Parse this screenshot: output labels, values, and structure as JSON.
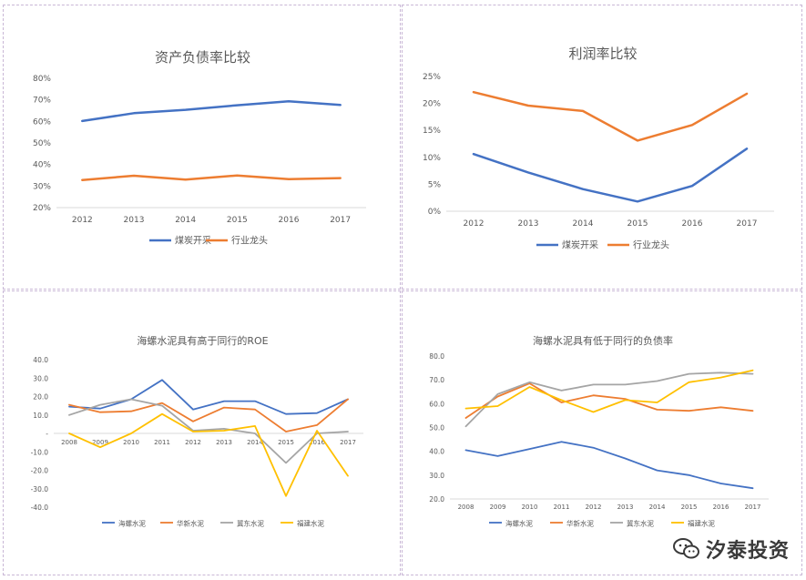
{
  "charts": [
    {
      "type": "line",
      "title": "资产负债率比较",
      "categories": [
        "2012",
        "2013",
        "2014",
        "2015",
        "2016",
        "2017"
      ],
      "y_ticks": [
        "20%",
        "30%",
        "40%",
        "50%",
        "60%",
        "70%",
        "80%"
      ],
      "ylim": [
        20,
        80
      ],
      "series": [
        {
          "name": "煤炭开采",
          "color": "#4472c4",
          "values": [
            60.2,
            63.8,
            65.4,
            67.5,
            69.3,
            67.6
          ]
        },
        {
          "name": "行业龙头",
          "color": "#ed7d31",
          "values": [
            32.8,
            34.8,
            33.0,
            34.9,
            33.2,
            33.7
          ]
        }
      ],
      "legend": "bottom",
      "grid": false
    },
    {
      "type": "line",
      "title": "利润率比较",
      "categories": [
        "2012",
        "2013",
        "2014",
        "2015",
        "2016",
        "2017"
      ],
      "y_ticks": [
        "0%",
        "5%",
        "10%",
        "15%",
        "20%",
        "25%"
      ],
      "ylim": [
        0,
        25
      ],
      "series": [
        {
          "name": "煤炭开采",
          "color": "#4472c4",
          "values": [
            10.6,
            7.2,
            4.1,
            1.8,
            4.7,
            11.6
          ]
        },
        {
          "name": "行业龙头",
          "color": "#ed7d31",
          "values": [
            22.1,
            19.6,
            18.6,
            13.1,
            16.0,
            21.8
          ]
        }
      ],
      "legend": "bottom",
      "grid": false
    },
    {
      "type": "line",
      "title": "海螺水泥具有高于同行的ROE",
      "categories": [
        "2008",
        "2009",
        "2010",
        "2011",
        "2012",
        "2013",
        "2014",
        "2015",
        "2016",
        "2017"
      ],
      "y_ticks": [
        "-40.0",
        "-30.0",
        "-20.0",
        "-10.0",
        "-",
        "10.0",
        "20.0",
        "30.0",
        "40.0"
      ],
      "ylim": [
        -40,
        40
      ],
      "series": [
        {
          "name": "海螺水泥",
          "color": "#4472c4",
          "values": [
            14.5,
            13.5,
            18.5,
            29.0,
            13.0,
            17.5,
            17.5,
            10.5,
            11.0,
            18.5
          ]
        },
        {
          "name": "华新水泥",
          "color": "#ed7d31",
          "values": [
            15.5,
            11.5,
            12.0,
            16.5,
            6.5,
            14.0,
            13.0,
            1.0,
            4.5,
            18.5
          ]
        },
        {
          "name": "冀东水泥",
          "color": "#a5a5a5",
          "values": [
            10.0,
            15.5,
            18.5,
            15.0,
            1.5,
            2.5,
            0.0,
            -16.0,
            0.0,
            1.0
          ]
        },
        {
          "name": "福建水泥",
          "color": "#ffc000",
          "values": [
            0.0,
            -7.5,
            0.0,
            10.5,
            1.0,
            1.5,
            4.0,
            -34.0,
            1.5,
            -23.0
          ]
        }
      ],
      "legend": "bottom",
      "grid": false
    },
    {
      "type": "line",
      "title": "海螺水泥具有低于同行的负债率",
      "categories": [
        "2008",
        "2009",
        "2010",
        "2011",
        "2012",
        "2013",
        "2014",
        "2015",
        "2016",
        "2017"
      ],
      "y_ticks": [
        "20.0",
        "30.0",
        "40.0",
        "50.0",
        "60.0",
        "70.0",
        "80.0"
      ],
      "ylim": [
        20,
        80
      ],
      "series": [
        {
          "name": "海螺水泥",
          "color": "#4472c4",
          "values": [
            40.5,
            38.0,
            41.0,
            44.0,
            41.5,
            37.0,
            32.0,
            30.0,
            26.5,
            24.5
          ]
        },
        {
          "name": "华新水泥",
          "color": "#ed7d31",
          "values": [
            54.0,
            63.0,
            68.5,
            60.5,
            63.5,
            62.0,
            57.5,
            57.0,
            58.5,
            57.0
          ]
        },
        {
          "name": "冀东水泥",
          "color": "#a5a5a5",
          "values": [
            50.5,
            64.0,
            69.0,
            65.5,
            68.0,
            68.0,
            69.5,
            72.5,
            73.0,
            72.5
          ]
        },
        {
          "name": "福建水泥",
          "color": "#ffc000",
          "values": [
            58.0,
            59.0,
            67.0,
            61.5,
            56.5,
            61.5,
            60.5,
            69.0,
            71.0,
            74.0
          ]
        }
      ],
      "legend": "bottom",
      "grid": false
    }
  ],
  "watermark": {
    "text": "汐泰投资",
    "icon": "wechat-icon"
  }
}
